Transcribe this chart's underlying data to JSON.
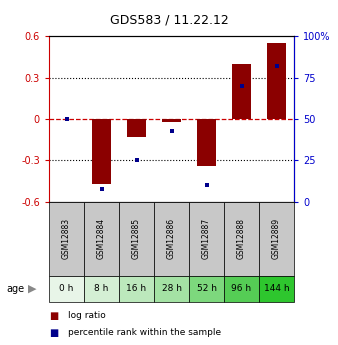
{
  "title": "GDS583 / 11.22.12",
  "samples": [
    "GSM12883",
    "GSM12884",
    "GSM12885",
    "GSM12886",
    "GSM12887",
    "GSM12888",
    "GSM12889"
  ],
  "ages": [
    "0 h",
    "8 h",
    "16 h",
    "28 h",
    "52 h",
    "96 h",
    "144 h"
  ],
  "log_ratio": [
    0.0,
    -0.47,
    -0.13,
    -0.02,
    -0.34,
    0.4,
    0.55
  ],
  "percentile_rank": [
    50,
    8,
    25,
    43,
    10,
    70,
    82
  ],
  "ylim_left": [
    -0.6,
    0.6
  ],
  "ylim_right": [
    0,
    100
  ],
  "yticks_left": [
    -0.6,
    -0.3,
    0,
    0.3,
    0.6
  ],
  "yticks_right": [
    0,
    25,
    50,
    75,
    100
  ],
  "bar_color": "#8B0000",
  "dot_color": "#00008B",
  "left_axis_color": "#cc0000",
  "right_axis_color": "#0000cc",
  "zero_line_color": "#cc0000",
  "grid_color": "#000000",
  "bar_width": 0.55,
  "gsm_bg": "#c8c8c8",
  "age_colors": [
    "#e8f5e8",
    "#d4efd4",
    "#bce8bc",
    "#a4e2a4",
    "#7dd87d",
    "#55cd55",
    "#2ec62e"
  ],
  "dot_size": 3.5
}
